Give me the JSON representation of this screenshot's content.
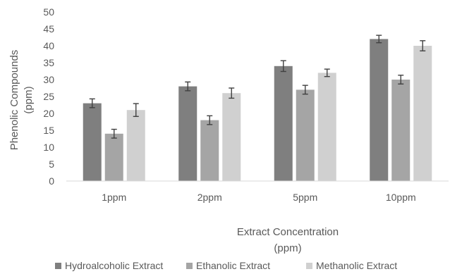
{
  "chart_data": {
    "type": "bar",
    "title": "",
    "xlabel_lines": [
      "Extract Concentration",
      "(ppm)"
    ],
    "ylabel_lines": [
      "Phenolic Compounds",
      "(ppm)"
    ],
    "ylim": [
      0,
      50
    ],
    "yticks": [
      0,
      5,
      10,
      15,
      20,
      25,
      30,
      35,
      40,
      45,
      50
    ],
    "grid": false,
    "legend_position": "bottom",
    "categories": [
      "1ppm",
      "2ppm",
      "5ppm",
      "10ppm"
    ],
    "series": [
      {
        "name": "Hydroalcoholic Extract",
        "color": "#7f7f7f",
        "values": [
          23,
          28,
          34,
          42
        ],
        "errors": [
          1.3,
          1.3,
          1.6,
          1.1
        ]
      },
      {
        "name": "Ethanolic Extract",
        "color": "#a5a5a5",
        "values": [
          14,
          18,
          27,
          30
        ],
        "errors": [
          1.3,
          1.3,
          1.3,
          1.3
        ]
      },
      {
        "name": "Methanolic Extract",
        "color": "#d0d0d0",
        "values": [
          21,
          26,
          32,
          40
        ],
        "errors": [
          1.9,
          1.5,
          1.1,
          1.5
        ]
      }
    ]
  }
}
